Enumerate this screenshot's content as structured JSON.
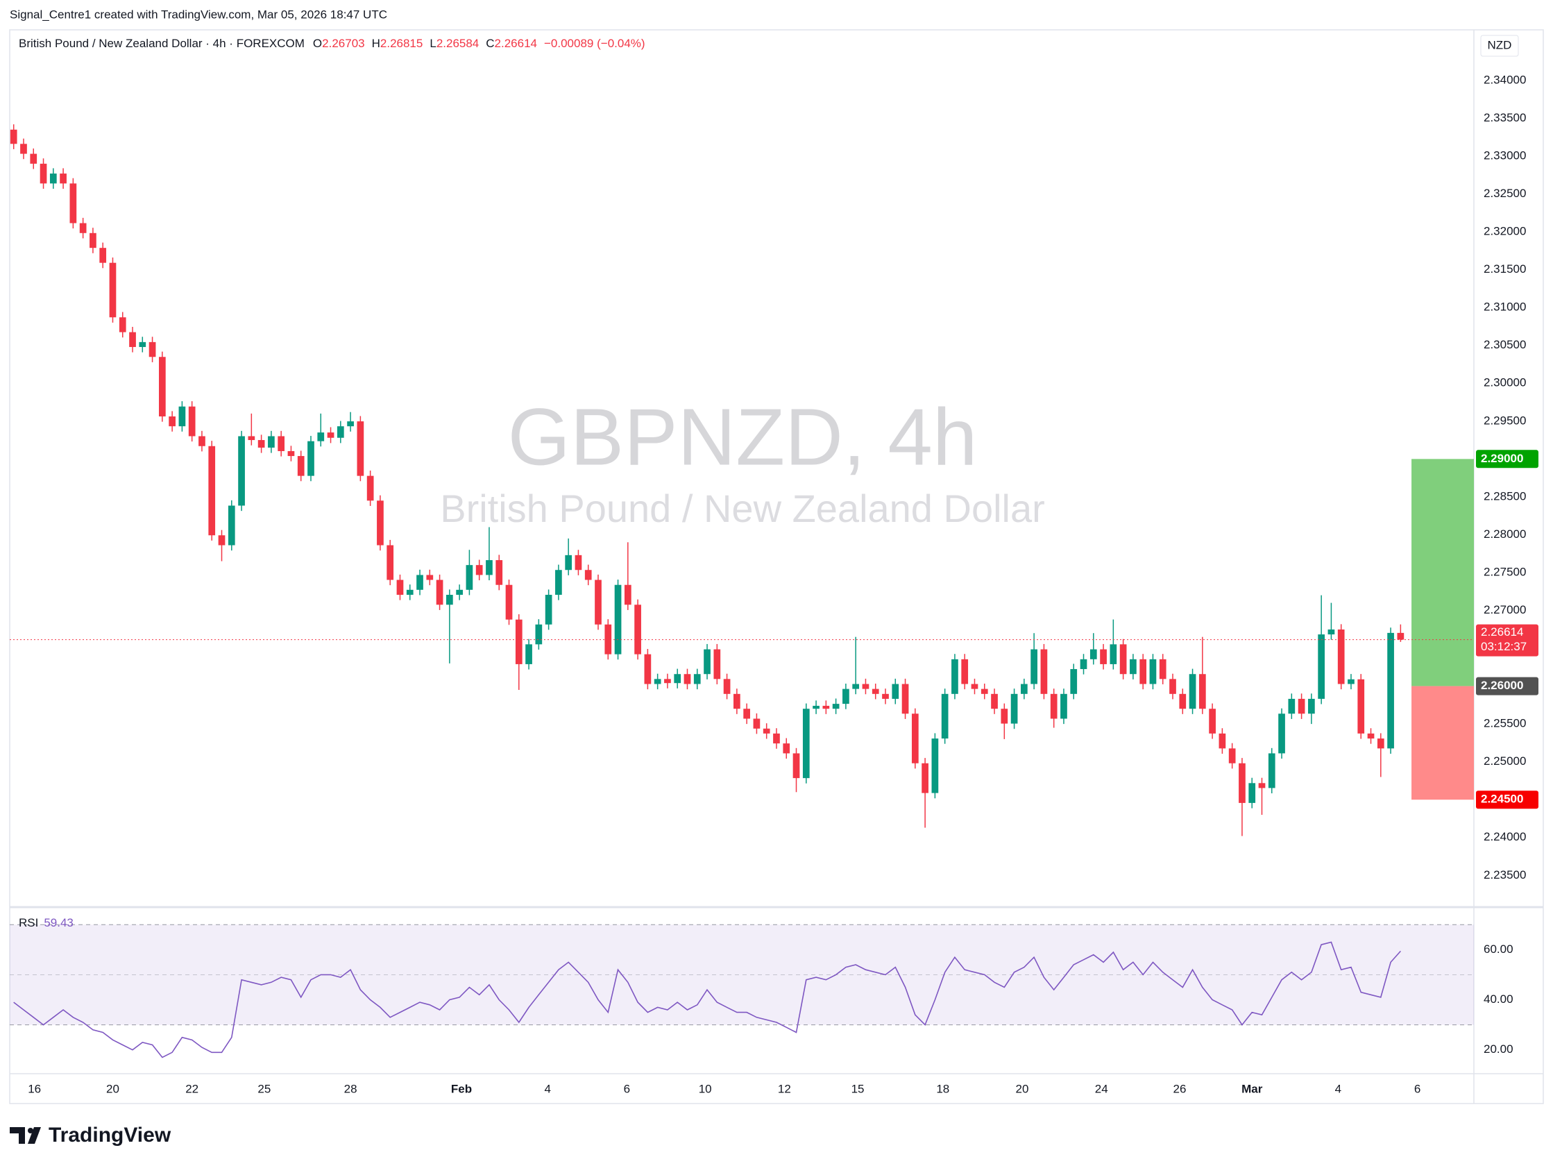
{
  "header": {
    "attribution": "Signal_Centre1 created with TradingView.com, Mar 05, 2026 18:47 UTC",
    "logo": "TradingView"
  },
  "chart_data": [
    {
      "type": "candlestick",
      "title": "British Pound / New Zealand Dollar · 4h · FOREXCOM",
      "legend_labels": {
        "open": "O",
        "high": "H",
        "low": "L",
        "close": "C"
      },
      "change": "−0.00089 (−0.04%)",
      "watermark": {
        "symbol": "GBPNZD, 4h",
        "name": "British Pound / New Zealand Dollar"
      },
      "currency": "NZD",
      "countdown": "03:12:37",
      "up_color": "#089981",
      "down_color": "#f23645",
      "grid": false,
      "open": [
        2.3335,
        2.33162,
        2.33031,
        2.329,
        2.32639,
        2.3277,
        2.32639,
        2.32115,
        2.31984,
        2.31788,
        2.31591,
        2.30871,
        2.30675,
        2.30479,
        2.30544,
        2.30348,
        2.29562,
        2.29432,
        2.29693,
        2.29301,
        2.2917,
        2.27992,
        2.27861,
        2.28384,
        2.29301,
        2.2925,
        2.2915,
        2.29301,
        2.29104,
        2.29039,
        2.28777,
        2.29235,
        2.2935,
        2.2928,
        2.29432,
        2.29497,
        2.28777,
        2.2845,
        2.27861,
        2.27403,
        2.27206,
        2.27272,
        2.27468,
        2.27403,
        2.27075,
        2.27206,
        2.27272,
        2.27599,
        2.27468,
        2.27664,
        2.27337,
        2.26879,
        2.2629,
        2.26552,
        2.26814,
        2.27206,
        2.27534,
        2.2773,
        2.27534,
        2.27403,
        2.26814,
        2.26421,
        2.27337,
        2.27075,
        2.26421,
        2.26028,
        2.26094,
        2.2604,
        2.26159,
        2.26028,
        2.26159,
        2.26486,
        2.26094,
        2.25897,
        2.25701,
        2.2557,
        2.25439,
        2.25374,
        2.25243,
        2.25112,
        2.24785,
        2.25701,
        2.2574,
        2.25701,
        2.25766,
        2.25963,
        2.26028,
        2.25963,
        2.25897,
        2.25832,
        2.26028,
        2.25636,
        2.24981,
        2.24588,
        2.25308,
        2.25897,
        2.26355,
        2.26028,
        2.25963,
        2.25897,
        2.25701,
        2.25505,
        2.25897,
        2.26028,
        2.26486,
        2.25897,
        2.2557,
        2.25897,
        2.26225,
        2.26355,
        2.26486,
        2.2629,
        2.26552,
        2.26159,
        2.26355,
        2.26028,
        2.26355,
        2.26094,
        2.25897,
        2.25701,
        2.26159,
        2.25701,
        2.25374,
        2.25177,
        2.24981,
        2.24457,
        2.24719,
        2.24654,
        2.25112,
        2.25636,
        2.25832,
        2.25636,
        2.25832,
        2.26683,
        2.26748,
        2.26028,
        2.2609,
        2.25374,
        2.25308,
        2.25177,
        2.26703
      ],
      "high": [
        2.3342,
        2.33232,
        2.33101,
        2.3297,
        2.3284,
        2.3284,
        2.32709,
        2.32185,
        2.32054,
        2.31858,
        2.31661,
        2.30941,
        2.30745,
        2.30614,
        2.30614,
        2.30418,
        2.29632,
        2.29763,
        2.29763,
        2.29371,
        2.2924,
        2.28062,
        2.28454,
        2.29371,
        2.296,
        2.2932,
        2.29371,
        2.29371,
        2.29174,
        2.29109,
        2.29305,
        2.296,
        2.2942,
        2.29502,
        2.2962,
        2.29567,
        2.28847,
        2.2852,
        2.27931,
        2.27473,
        2.27342,
        2.27538,
        2.27538,
        2.27473,
        2.27276,
        2.27342,
        2.278,
        2.27669,
        2.281,
        2.27734,
        2.27407,
        2.26949,
        2.26622,
        2.26884,
        2.27276,
        2.27604,
        2.2795,
        2.278,
        2.27604,
        2.27473,
        2.26884,
        2.27407,
        2.279,
        2.27145,
        2.26491,
        2.26164,
        2.26164,
        2.26229,
        2.26229,
        2.26229,
        2.26556,
        2.26556,
        2.26164,
        2.25967,
        2.25771,
        2.2564,
        2.25509,
        2.25444,
        2.25313,
        2.25182,
        2.25771,
        2.2581,
        2.2581,
        2.25836,
        2.26033,
        2.2665,
        2.26098,
        2.26033,
        2.25967,
        2.26098,
        2.26098,
        2.25706,
        2.25051,
        2.25378,
        2.25967,
        2.26425,
        2.26425,
        2.26098,
        2.26033,
        2.25967,
        2.25771,
        2.25967,
        2.26098,
        2.267,
        2.26556,
        2.25967,
        2.25967,
        2.26295,
        2.26425,
        2.267,
        2.26556,
        2.2688,
        2.26622,
        2.26425,
        2.26425,
        2.26425,
        2.26425,
        2.26164,
        2.25967,
        2.26229,
        2.2665,
        2.25771,
        2.25444,
        2.25247,
        2.25051,
        2.24789,
        2.24789,
        2.25182,
        2.25706,
        2.25902,
        2.25902,
        2.25902,
        2.272,
        2.271,
        2.26818,
        2.2616,
        2.2616,
        2.25444,
        2.25378,
        2.26773,
        2.26815
      ],
      "low": [
        2.33092,
        2.32961,
        2.3283,
        2.32569,
        2.32569,
        2.32569,
        2.32045,
        2.31914,
        2.31718,
        2.31521,
        2.30801,
        2.30605,
        2.30409,
        2.30409,
        2.30278,
        2.29492,
        2.29362,
        2.29362,
        2.29231,
        2.291,
        2.27922,
        2.2765,
        2.27791,
        2.28314,
        2.2918,
        2.2908,
        2.2908,
        2.29034,
        2.28969,
        2.28707,
        2.28707,
        2.29165,
        2.2921,
        2.2921,
        2.29362,
        2.28707,
        2.2838,
        2.27791,
        2.27333,
        2.27136,
        2.27136,
        2.27202,
        2.27333,
        2.27005,
        2.263,
        2.27136,
        2.27202,
        2.27398,
        2.27398,
        2.27267,
        2.26809,
        2.2595,
        2.2622,
        2.26482,
        2.26744,
        2.27136,
        2.27464,
        2.27464,
        2.27333,
        2.26744,
        2.26351,
        2.26351,
        2.27005,
        2.26351,
        2.25958,
        2.25958,
        2.2597,
        2.2597,
        2.25958,
        2.25958,
        2.26089,
        2.26024,
        2.25827,
        2.25631,
        2.255,
        2.25369,
        2.25304,
        2.25173,
        2.25042,
        2.246,
        2.24715,
        2.25631,
        2.25631,
        2.25631,
        2.25696,
        2.25893,
        2.25893,
        2.25827,
        2.25762,
        2.25762,
        2.25566,
        2.24911,
        2.2413,
        2.24518,
        2.25238,
        2.25827,
        2.25958,
        2.25893,
        2.25827,
        2.25631,
        2.253,
        2.25435,
        2.25827,
        2.25958,
        2.25827,
        2.2545,
        2.255,
        2.25827,
        2.26155,
        2.26285,
        2.2622,
        2.2622,
        2.26089,
        2.26089,
        2.25958,
        2.25958,
        2.26024,
        2.25827,
        2.25631,
        2.25631,
        2.25631,
        2.25304,
        2.25107,
        2.24911,
        2.2402,
        2.24387,
        2.243,
        2.24584,
        2.25042,
        2.25566,
        2.25566,
        2.255,
        2.25762,
        2.26613,
        2.25958,
        2.25958,
        2.25304,
        2.25238,
        2.248,
        2.25107,
        2.26584
      ],
      "close": [
        2.33162,
        2.33031,
        2.329,
        2.32639,
        2.3277,
        2.32639,
        2.32115,
        2.31984,
        2.31788,
        2.31591,
        2.30871,
        2.30675,
        2.30479,
        2.30544,
        2.30348,
        2.29562,
        2.29432,
        2.29693,
        2.29301,
        2.2917,
        2.27992,
        2.27861,
        2.28384,
        2.29301,
        2.2925,
        2.2915,
        2.29301,
        2.29104,
        2.29039,
        2.28777,
        2.29235,
        2.2935,
        2.2928,
        2.29432,
        2.29497,
        2.28777,
        2.2845,
        2.27861,
        2.27403,
        2.27206,
        2.27272,
        2.27468,
        2.27403,
        2.27075,
        2.27206,
        2.27272,
        2.27599,
        2.27468,
        2.27664,
        2.27337,
        2.26879,
        2.2629,
        2.26552,
        2.26814,
        2.27206,
        2.27534,
        2.2773,
        2.27534,
        2.27403,
        2.26814,
        2.26421,
        2.27337,
        2.27075,
        2.26421,
        2.26028,
        2.26094,
        2.2604,
        2.26159,
        2.26028,
        2.26159,
        2.26486,
        2.26094,
        2.25897,
        2.25701,
        2.2557,
        2.25439,
        2.25374,
        2.25243,
        2.25112,
        2.24785,
        2.25701,
        2.2574,
        2.25701,
        2.25766,
        2.25963,
        2.26028,
        2.25963,
        2.25897,
        2.25832,
        2.26028,
        2.25636,
        2.24981,
        2.24588,
        2.25308,
        2.25897,
        2.26355,
        2.26028,
        2.25963,
        2.25897,
        2.25701,
        2.25505,
        2.25897,
        2.26028,
        2.26486,
        2.25897,
        2.2557,
        2.25897,
        2.26225,
        2.26355,
        2.26486,
        2.2629,
        2.26552,
        2.26159,
        2.26355,
        2.26028,
        2.26355,
        2.26094,
        2.25897,
        2.25701,
        2.26159,
        2.25701,
        2.25374,
        2.25177,
        2.24981,
        2.24457,
        2.24719,
        2.24654,
        2.25112,
        2.25636,
        2.25832,
        2.25636,
        2.25832,
        2.26683,
        2.26748,
        2.26028,
        2.2609,
        2.25374,
        2.25308,
        2.25177,
        2.26703,
        2.26614
      ],
      "ylim": [
        2.23081,
        2.34668
      ],
      "yticks": [
        {
          "value": 2.235,
          "label": "2.23500"
        },
        {
          "value": 2.24,
          "label": "2.24000"
        },
        {
          "value": 2.245,
          "label": "2.24500"
        },
        {
          "value": 2.25,
          "label": "2.25000"
        },
        {
          "value": 2.255,
          "label": "2.25500"
        },
        {
          "value": 2.26,
          "label": "2.26000"
        },
        {
          "value": 2.265,
          "label": "2.26500"
        },
        {
          "value": 2.27,
          "label": "2.27000"
        },
        {
          "value": 2.275,
          "label": "2.27500"
        },
        {
          "value": 2.28,
          "label": "2.28000"
        },
        {
          "value": 2.285,
          "label": "2.28500"
        },
        {
          "value": 2.29,
          "label": "2.29000"
        },
        {
          "value": 2.295,
          "label": "2.29500"
        },
        {
          "value": 2.3,
          "label": "2.30000"
        },
        {
          "value": 2.305,
          "label": "2.30500"
        },
        {
          "value": 2.31,
          "label": "2.31000"
        },
        {
          "value": 2.315,
          "label": "2.31500"
        },
        {
          "value": 2.32,
          "label": "2.32000"
        },
        {
          "value": 2.325,
          "label": "2.32500"
        },
        {
          "value": 2.33,
          "label": "2.33000"
        },
        {
          "value": 2.335,
          "label": "2.33500"
        },
        {
          "value": 2.34,
          "label": "2.34000"
        }
      ],
      "xlim": [
        -0.4,
        147.4
      ],
      "xticks": [
        {
          "value": 2.1,
          "label": "16"
        },
        {
          "value": 10,
          "label": "20"
        },
        {
          "value": 18,
          "label": "22"
        },
        {
          "value": 25.3,
          "label": "25"
        },
        {
          "value": 34,
          "label": "28"
        },
        {
          "value": 45.2,
          "label": "Feb"
        },
        {
          "value": 53.9,
          "label": "4"
        },
        {
          "value": 61.9,
          "label": "6"
        },
        {
          "value": 69.8,
          "label": "10"
        },
        {
          "value": 77.8,
          "label": "12"
        },
        {
          "value": 85.2,
          "label": "15"
        },
        {
          "value": 93.8,
          "label": "18"
        },
        {
          "value": 101.8,
          "label": "20"
        },
        {
          "value": 109.8,
          "label": "24"
        },
        {
          "value": 117.7,
          "label": "26"
        },
        {
          "value": 125,
          "label": "Mar"
        },
        {
          "value": 133.7,
          "label": "4"
        },
        {
          "value": 141.7,
          "label": "6"
        }
      ],
      "position": {
        "take_profit": {
          "value": 2.29,
          "label": "2.29000",
          "color": "#80cf7c",
          "label_color": "#00a300"
        },
        "entry": {
          "value": 2.26,
          "label": "2.26000",
          "label_color": "#525252"
        },
        "stop_loss": {
          "value": 2.245,
          "label": "2.24500",
          "color": "#ff8a8a",
          "label_color": "#f70000"
        }
      }
    },
    {
      "type": "line",
      "series": [
        {
          "name": "RSI",
          "color": "#7e57c2",
          "values": [
            39,
            36,
            33,
            30,
            33,
            36,
            33,
            31,
            28,
            27,
            24,
            22,
            20,
            23,
            22,
            17,
            19,
            25,
            24,
            21,
            19,
            19,
            25,
            48,
            47,
            46,
            47,
            49,
            48,
            41,
            48,
            50,
            50,
            49,
            52,
            44,
            40,
            37,
            33,
            35,
            37,
            39,
            38,
            36,
            40,
            41,
            45,
            42,
            46,
            40,
            36,
            31,
            37,
            42,
            47,
            52,
            55,
            51,
            47,
            40,
            35,
            52,
            47,
            39,
            35,
            37,
            36,
            39,
            36,
            38,
            44,
            39,
            37,
            35,
            35,
            33,
            32,
            31,
            29,
            27,
            48,
            49,
            48,
            50,
            53,
            54,
            52,
            51,
            50,
            53,
            45,
            34,
            30,
            40,
            51,
            57,
            52,
            51,
            50,
            47,
            45,
            51,
            53,
            57,
            49,
            44,
            49,
            54,
            56,
            58,
            55,
            59,
            52,
            55,
            50,
            55,
            51,
            48,
            45,
            52,
            45,
            40,
            38,
            36,
            30,
            35,
            34,
            41,
            48,
            51,
            48,
            51,
            62,
            63,
            52,
            53,
            43,
            42,
            41,
            55,
            59.43
          ]
        }
      ],
      "levels": [
        30,
        50,
        70
      ],
      "band_color": "#7e57c2",
      "ylim": [
        10.5,
        77
      ],
      "yticks": [
        {
          "value": 20,
          "label": "20.00"
        },
        {
          "value": 40,
          "label": "40.00"
        },
        {
          "value": 60,
          "label": "60.00"
        }
      ]
    }
  ]
}
